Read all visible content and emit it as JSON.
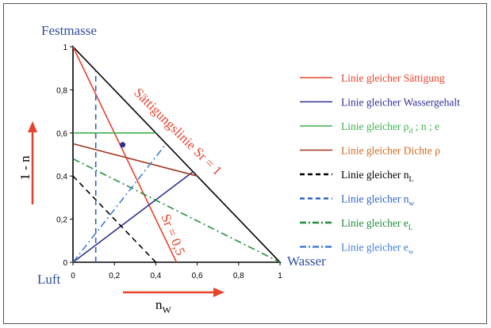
{
  "corner_labels": {
    "top": "Festmasse",
    "bottom_left": "Luft",
    "bottom_right": "Wasser"
  },
  "axes": {
    "y_label": "1 - n",
    "x_label_main": "n",
    "x_label_sub": "W",
    "x_ticks": [
      "0",
      "0,2",
      "0,4",
      "0,6",
      "0,8",
      "1"
    ],
    "y_ticks": [
      "0",
      "0,2",
      "0,4",
      "0,6",
      "0,8",
      "1"
    ]
  },
  "curve_labels": {
    "saturation_line": "Sättigungslinie Sr = 1",
    "sr_half": "Sr = 0,5"
  },
  "legend": [
    {
      "id": "saet",
      "parts": [
        {
          "t": "Linie gleicher Sättigung"
        }
      ],
      "color": "#e8432c",
      "text_color": "#e8432c",
      "dash": "solid"
    },
    {
      "id": "wg",
      "parts": [
        {
          "t": "Linie gleicher Wassergehalt"
        }
      ],
      "color": "#2e3192",
      "text_color": "#2e3192",
      "dash": "solid"
    },
    {
      "id": "rhod",
      "parts": [
        {
          "t": "Linie gleicher ρ"
        },
        {
          "t": "d",
          "sub": true
        },
        {
          "t": " ; n ; e"
        }
      ],
      "color": "#3cb44b",
      "text_color": "#3cb44b",
      "dash": "solid"
    },
    {
      "id": "dichte",
      "parts": [
        {
          "t": "Linie gleicher Dichte ρ"
        }
      ],
      "color": "#a0361c",
      "text_color": "#d2691e",
      "dash": "solid"
    },
    {
      "id": "nl",
      "parts": [
        {
          "t": "Linie gleicher n"
        },
        {
          "t": "L",
          "sub": true
        }
      ],
      "color": "#000000",
      "text_color": "#000000",
      "dash": "dash"
    },
    {
      "id": "nw",
      "parts": [
        {
          "t": "Linie gleicher n"
        },
        {
          "t": "w",
          "sub": true
        }
      ],
      "color": "#2f62c8",
      "text_color": "#2f62c8",
      "dash": "dash"
    },
    {
      "id": "el",
      "parts": [
        {
          "t": "Linie gleicher e"
        },
        {
          "t": "L",
          "sub": true
        }
      ],
      "color": "#1e8c3a",
      "text_color": "#1e8c3a",
      "dash": "dashdot"
    },
    {
      "id": "ew",
      "parts": [
        {
          "t": "Linie gleicher e"
        },
        {
          "t": "w",
          "sub": true
        }
      ],
      "color": "#3f7fd6",
      "text_color": "#3f7fd6",
      "dash": "dashdot"
    }
  ],
  "lines": [
    {
      "id": "triangle",
      "points": [
        [
          0,
          0
        ],
        [
          1,
          0
        ],
        [
          0,
          1
        ],
        [
          0,
          0
        ]
      ],
      "color": "#000000",
      "dash": "solid"
    },
    {
      "id": "saet",
      "points": [
        [
          0,
          1
        ],
        [
          0.5,
          0
        ]
      ],
      "color": "#e8432c",
      "dash": "solid"
    },
    {
      "id": "wg",
      "points": [
        [
          0,
          0
        ],
        [
          0.58,
          0.42
        ]
      ],
      "color": "#2e3192",
      "dash": "solid"
    },
    {
      "id": "rhod",
      "points": [
        [
          0,
          0.6
        ],
        [
          0.4,
          0.6
        ]
      ],
      "color": "#3cb44b",
      "dash": "solid"
    },
    {
      "id": "dichte",
      "points": [
        [
          0,
          0.55
        ],
        [
          0.6,
          0.4
        ]
      ],
      "color": "#a0361c",
      "dash": "solid"
    },
    {
      "id": "nl",
      "points": [
        [
          0,
          0.4
        ],
        [
          0.4,
          0
        ]
      ],
      "color": "#000000",
      "dash": "dash"
    },
    {
      "id": "nw",
      "points": [
        [
          0.11,
          0
        ],
        [
          0.11,
          0.89
        ]
      ],
      "color": "#2f62c8",
      "dash": "dash"
    },
    {
      "id": "el",
      "points": [
        [
          0,
          0.48
        ],
        [
          1,
          0
        ]
      ],
      "color": "#1e8c3a",
      "dash": "dashdot"
    },
    {
      "id": "ew",
      "points": [
        [
          0,
          0
        ],
        [
          0.45,
          0.55
        ]
      ],
      "color": "#3f7fd6",
      "dash": "dashdot"
    }
  ],
  "marker": {
    "point": [
      0.24,
      0.545
    ],
    "color": "#2e3192"
  },
  "arrow_color": "#e8432c",
  "corner_label_color": "#2e4d9e"
}
